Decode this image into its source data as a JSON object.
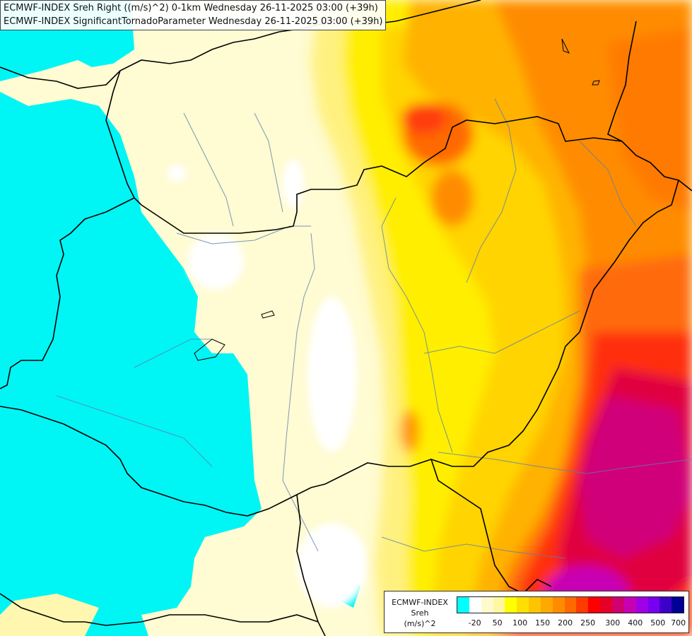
{
  "title": {
    "line1": "ECMWF-INDEX Sreh Right ((m/s)^2) 0-1km Wednesday 26-11-2025 03:00 (+39h)",
    "line2": "ECMWF-INDEX SignificantTornadoParameter Wednesday 26-11-2025 03:00 (+39h)"
  },
  "legend": {
    "model": "ECMWF-INDEX",
    "variable": "Sreh",
    "unit": "(m/s)^2",
    "colors": [
      "#00ffff",
      "#ffffff",
      "#fffacd",
      "#fff8a0",
      "#ffff00",
      "#ffdf00",
      "#ffc400",
      "#ffa800",
      "#ff8c00",
      "#ff6a00",
      "#ff3c00",
      "#ff0000",
      "#e60028",
      "#d2006e",
      "#c800b4",
      "#a000e6",
      "#7800f0",
      "#3c00c8",
      "#000096"
    ],
    "ticks": [
      "-20",
      "50",
      "100",
      "150",
      "200",
      "250",
      "300",
      "400",
      "500",
      "700"
    ]
  }
}
